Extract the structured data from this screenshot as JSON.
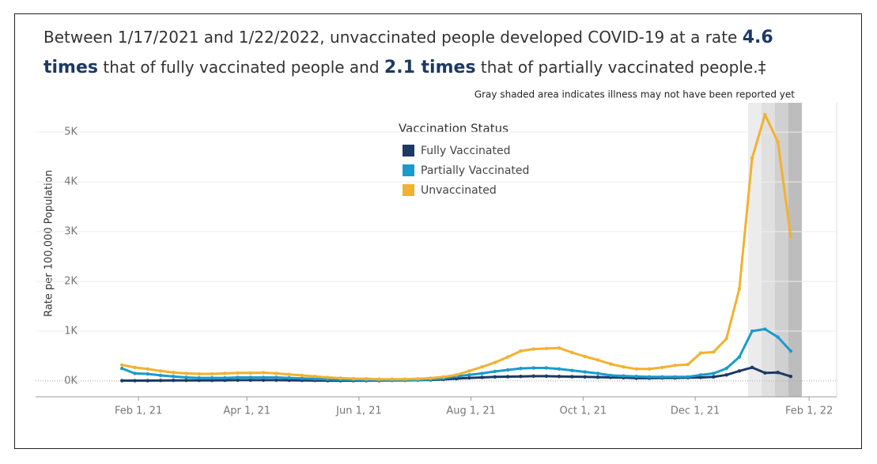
{
  "chart_data": {
    "type": "line",
    "title_segments": [
      {
        "text": "Between 1/17/2021 and 1/22/2022, unvaccinated people developed COVID-19 at a rate ",
        "bold": false
      },
      {
        "text": "4.6",
        "bold": true
      },
      {
        "text": "times",
        "bold": true
      },
      {
        "text": " that of fully vaccinated people and ",
        "bold": false
      },
      {
        "text": "2.1 times",
        "bold": true
      },
      {
        "text": " that of partially vaccinated people.‡",
        "bold": false
      }
    ],
    "annotation": "Gray shaded area indicates illness may not have been reported yet",
    "y_label": "Rate per 100,000 Population",
    "legend_title": "Vaccination Status",
    "x": [
      "2021-01-23",
      "2021-01-30",
      "2021-02-06",
      "2021-02-13",
      "2021-02-20",
      "2021-02-27",
      "2021-03-06",
      "2021-03-13",
      "2021-03-20",
      "2021-03-27",
      "2021-04-03",
      "2021-04-10",
      "2021-04-17",
      "2021-04-24",
      "2021-05-01",
      "2021-05-08",
      "2021-05-15",
      "2021-05-22",
      "2021-05-29",
      "2021-06-05",
      "2021-06-12",
      "2021-06-19",
      "2021-06-26",
      "2021-07-03",
      "2021-07-10",
      "2021-07-17",
      "2021-07-24",
      "2021-07-31",
      "2021-08-07",
      "2021-08-14",
      "2021-08-21",
      "2021-08-28",
      "2021-09-04",
      "2021-09-11",
      "2021-09-18",
      "2021-09-25",
      "2021-10-02",
      "2021-10-09",
      "2021-10-16",
      "2021-10-23",
      "2021-10-30",
      "2021-11-06",
      "2021-11-13",
      "2021-11-20",
      "2021-11-27",
      "2021-12-04",
      "2021-12-11",
      "2021-12-18",
      "2021-12-25",
      "2022-01-01",
      "2022-01-08",
      "2022-01-15",
      "2022-01-22"
    ],
    "series": [
      {
        "name": "Fully Vaccinated",
        "color": "#1c3a63",
        "values": [
          5,
          5,
          5,
          8,
          10,
          10,
          10,
          10,
          12,
          15,
          15,
          15,
          15,
          12,
          10,
          8,
          5,
          5,
          5,
          5,
          5,
          8,
          10,
          15,
          20,
          30,
          45,
          60,
          70,
          80,
          85,
          90,
          95,
          95,
          90,
          85,
          80,
          75,
          70,
          65,
          55,
          55,
          60,
          60,
          65,
          70,
          80,
          120,
          200,
          270,
          160,
          170,
          90
        ]
      },
      {
        "name": "Partially Vaccinated",
        "color": "#1a9bcc",
        "values": [
          250,
          150,
          140,
          110,
          90,
          70,
          60,
          60,
          60,
          70,
          70,
          70,
          70,
          60,
          50,
          40,
          30,
          25,
          20,
          15,
          10,
          10,
          15,
          20,
          30,
          50,
          90,
          120,
          150,
          190,
          220,
          250,
          260,
          260,
          240,
          210,
          180,
          150,
          110,
          100,
          90,
          80,
          80,
          80,
          80,
          120,
          150,
          250,
          480,
          1000,
          1040,
          880,
          600
        ]
      },
      {
        "name": "Unvaccinated",
        "color": "#f2b130",
        "values": [
          320,
          270,
          240,
          200,
          170,
          150,
          140,
          140,
          150,
          160,
          160,
          165,
          150,
          130,
          110,
          90,
          70,
          55,
          45,
          40,
          35,
          35,
          35,
          40,
          55,
          80,
          120,
          200,
          280,
          370,
          480,
          600,
          640,
          650,
          660,
          570,
          490,
          420,
          340,
          280,
          240,
          240,
          270,
          310,
          330,
          560,
          580,
          850,
          1850,
          4480,
          5350,
          4800,
          2900
        ]
      }
    ],
    "xlim": [
      "2020-12-07",
      "2022-02-16"
    ],
    "xticks": [
      {
        "value": "2021-02-01",
        "label": "Feb 1, 21"
      },
      {
        "value": "2021-04-01",
        "label": "Apr 1, 21"
      },
      {
        "value": "2021-06-01",
        "label": "Jun 1, 21"
      },
      {
        "value": "2021-08-01",
        "label": "Aug 1, 21"
      },
      {
        "value": "2021-10-01",
        "label": "Oct 1, 21"
      },
      {
        "value": "2021-12-01",
        "label": "Dec 1, 21"
      },
      {
        "value": "2022-02-01",
        "label": "Feb 1, 22"
      }
    ],
    "ylim": [
      -320,
      5590
    ],
    "yticks": [
      {
        "value": 0,
        "label": "0K"
      },
      {
        "value": 1000,
        "label": "1K"
      },
      {
        "value": 2000,
        "label": "2K"
      },
      {
        "value": 3000,
        "label": "3K"
      },
      {
        "value": 4000,
        "label": "4K"
      },
      {
        "value": 5000,
        "label": "5K"
      }
    ],
    "grid": true
  }
}
